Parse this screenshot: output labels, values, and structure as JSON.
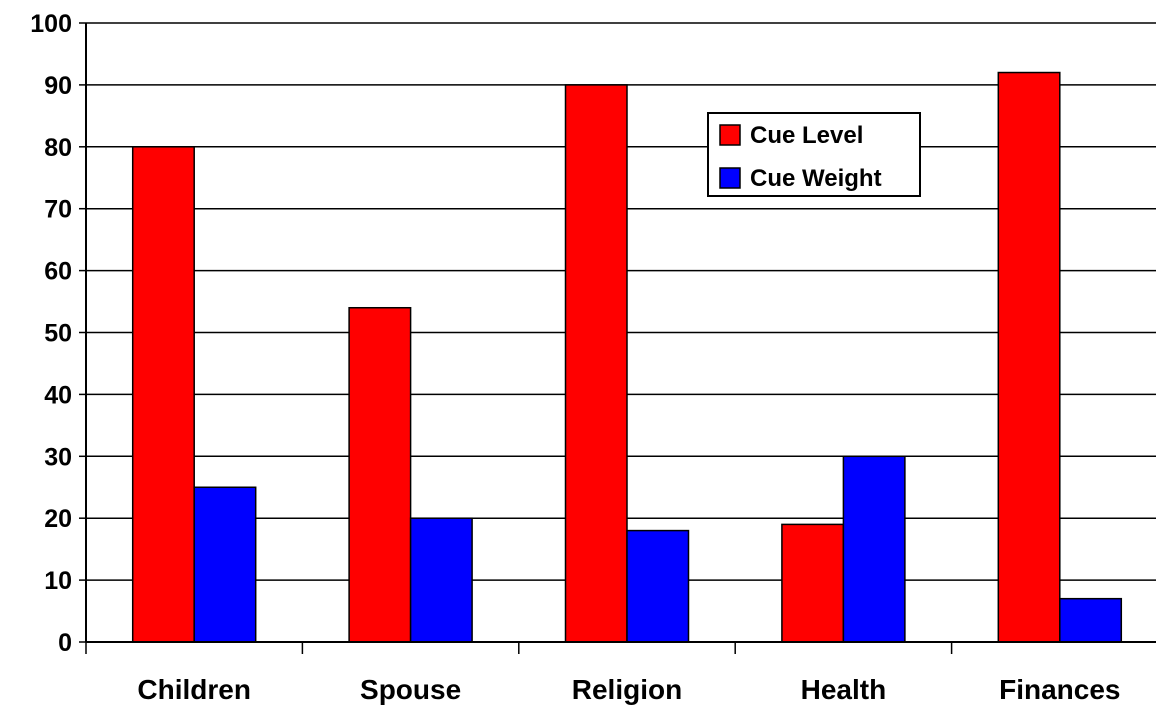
{
  "chart_data": {
    "type": "bar",
    "categories": [
      "Children",
      "Spouse",
      "Religion",
      "Health",
      "Finances"
    ],
    "series": [
      {
        "name": "Cue Level",
        "color": "#ff0000",
        "values": [
          80,
          54,
          90,
          19,
          92
        ]
      },
      {
        "name": "Cue Weight",
        "color": "#0000ff",
        "values": [
          25,
          20,
          18,
          30,
          7
        ]
      }
    ],
    "yticks": [
      "0",
      "10",
      "20",
      "30",
      "40",
      "50",
      "60",
      "70",
      "80",
      "90",
      "100"
    ],
    "ylim": [
      0,
      100
    ],
    "grid": true,
    "legend": "top-right inside plot"
  }
}
